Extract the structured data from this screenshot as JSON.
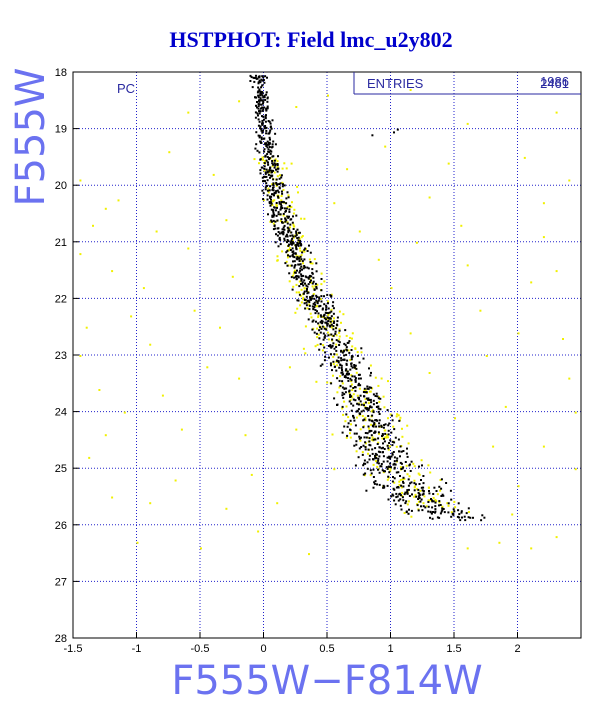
{
  "chart_data": {
    "type": "scatter",
    "title": "HSTPHOT: Field lmc_u2y802",
    "xlabel": "F555W−F814W",
    "ylabel": "F555W",
    "xlim": [
      -1.5,
      2.5
    ],
    "ylim": [
      28,
      18
    ],
    "y_inverted": true,
    "grid": true,
    "grid_style": "dotted",
    "x_ticks": [
      "-1.5",
      "-1",
      "-0.5",
      "0",
      "0.5",
      "1",
      "1.5",
      "2"
    ],
    "x_tick_values": [
      -1.5,
      -1,
      -0.5,
      0,
      0.5,
      1,
      1.5,
      2
    ],
    "y_ticks": [
      "18",
      "19",
      "20",
      "21",
      "22",
      "23",
      "24",
      "25",
      "26",
      "27",
      "28"
    ],
    "y_tick_values": [
      18,
      19,
      20,
      21,
      22,
      23,
      24,
      25,
      26,
      27,
      28
    ],
    "panel_label": "PC",
    "stats_box": {
      "label": "ENTRIES",
      "value_1": "2461",
      "value_2": "1986"
    },
    "series": [
      {
        "color": "#000000",
        "main_sequence": [
          [
            -0.05,
            18.0,
            0.06,
            0.0
          ],
          [
            0.0,
            19.0,
            0.07,
            0.0
          ],
          [
            0.06,
            20.0,
            0.09,
            0.0
          ],
          [
            0.2,
            21.0,
            0.11,
            0.0
          ],
          [
            0.4,
            22.0,
            0.12,
            0.0
          ],
          [
            0.6,
            23.0,
            0.14,
            0.0
          ],
          [
            0.78,
            24.0,
            0.18,
            0.0
          ],
          [
            1.0,
            25.0,
            0.25,
            0.0
          ],
          [
            1.3,
            25.7,
            0.3,
            0.0
          ],
          [
            1.6,
            25.9,
            0.25,
            0.0
          ]
        ],
        "points": [
          [
            0.85,
            19.1
          ],
          [
            1.02,
            19.05
          ],
          [
            1.05,
            19.0
          ],
          [
            0.28,
            21.0
          ],
          [
            0.32,
            21.1
          ],
          [
            0.35,
            21.05
          ]
        ]
      },
      {
        "color": "#f0f000",
        "main_sequence": [
          [
            0.05,
            19.5,
            0.12,
            0.0
          ],
          [
            0.15,
            20.5,
            0.14,
            0.0
          ],
          [
            0.3,
            21.5,
            0.16,
            0.0
          ],
          [
            0.5,
            22.5,
            0.18,
            0.0
          ],
          [
            0.7,
            23.5,
            0.22,
            0.0
          ],
          [
            0.95,
            24.8,
            0.28,
            0.0
          ],
          [
            1.4,
            25.8,
            0.3,
            0.0
          ]
        ],
        "field_points": [
          [
            -1.25,
            20.4
          ],
          [
            -1.15,
            20.25
          ],
          [
            -1.35,
            20.7
          ],
          [
            -1.2,
            21.5
          ],
          [
            -1.4,
            22.5
          ],
          [
            -1.3,
            23.6
          ],
          [
            -1.1,
            24.0
          ],
          [
            -1.25,
            24.4
          ],
          [
            -1.38,
            24.8
          ],
          [
            -0.9,
            22.8
          ],
          [
            -0.95,
            21.8
          ],
          [
            -0.85,
            20.8
          ],
          [
            -0.75,
            19.4
          ],
          [
            -0.6,
            21.1
          ],
          [
            -0.55,
            22.2
          ],
          [
            -0.45,
            23.2
          ],
          [
            -0.65,
            24.3
          ],
          [
            -0.7,
            25.2
          ],
          [
            -0.4,
            19.8
          ],
          [
            -0.3,
            20.6
          ],
          [
            -0.25,
            21.6
          ],
          [
            -0.35,
            22.5
          ],
          [
            -0.2,
            23.4
          ],
          [
            -0.15,
            24.4
          ],
          [
            -0.1,
            25.1
          ],
          [
            -0.05,
            26.1
          ],
          [
            -0.5,
            26.4
          ],
          [
            -1.0,
            26.3
          ],
          [
            -1.2,
            25.5
          ],
          [
            0.1,
            25.6
          ],
          [
            0.25,
            24.3
          ],
          [
            0.2,
            23.2
          ],
          [
            0.35,
            26.5
          ],
          [
            0.55,
            20.3
          ],
          [
            0.65,
            19.7
          ],
          [
            0.75,
            20.8
          ],
          [
            0.9,
            21.3
          ],
          [
            1.0,
            21.8
          ],
          [
            1.2,
            21.0
          ],
          [
            1.3,
            20.2
          ],
          [
            1.45,
            19.6
          ],
          [
            1.55,
            20.7
          ],
          [
            1.6,
            21.4
          ],
          [
            1.7,
            22.2
          ],
          [
            1.75,
            23.0
          ],
          [
            1.9,
            23.9
          ],
          [
            2.0,
            22.6
          ],
          [
            2.1,
            21.7
          ],
          [
            2.2,
            20.9
          ],
          [
            2.3,
            21.5
          ],
          [
            2.35,
            22.7
          ],
          [
            2.4,
            23.4
          ],
          [
            2.2,
            24.6
          ],
          [
            2.0,
            25.3
          ],
          [
            2.3,
            26.2
          ],
          [
            2.1,
            26.4
          ],
          [
            1.95,
            25.8
          ],
          [
            1.8,
            24.6
          ],
          [
            1.5,
            24.1
          ],
          [
            1.3,
            23.3
          ],
          [
            1.15,
            22.6
          ],
          [
            0.95,
            19.3
          ],
          [
            0.25,
            18.6
          ],
          [
            0.5,
            18.4
          ],
          [
            1.15,
            18.3
          ],
          [
            1.6,
            18.9
          ],
          [
            2.05,
            19.5
          ],
          [
            2.2,
            20.3
          ],
          [
            2.4,
            19.9
          ],
          [
            -1.45,
            19.9
          ],
          [
            -1.45,
            21.2
          ],
          [
            -1.45,
            23.0
          ],
          [
            -1.05,
            22.3
          ],
          [
            -0.8,
            23.7
          ],
          [
            -0.6,
            18.7
          ],
          [
            -0.2,
            18.5
          ],
          [
            -0.9,
            25.6
          ],
          [
            -0.3,
            25.7
          ],
          [
            0.55,
            25.0
          ],
          [
            1.85,
            26.3
          ],
          [
            1.6,
            26.4
          ],
          [
            2.45,
            25.0
          ],
          [
            2.45,
            24.0
          ],
          [
            2.3,
            18.7
          ]
        ]
      }
    ]
  }
}
